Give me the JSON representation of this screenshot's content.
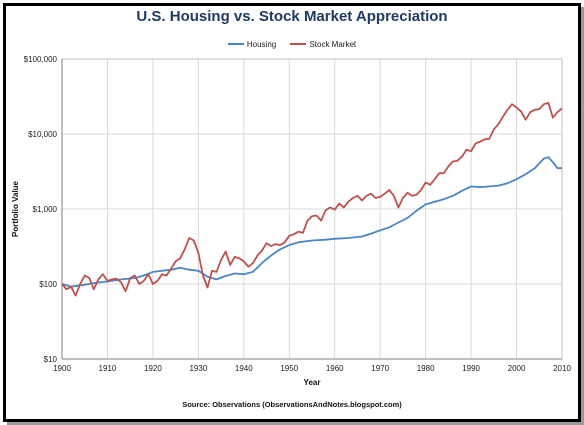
{
  "chart_data": {
    "type": "line",
    "title": "U.S. Housing vs. Stock Market Appreciation",
    "xlabel": "Year",
    "ylabel": "Portfolio Value",
    "y_scale": "log",
    "xlim": [
      1900,
      2010
    ],
    "ylim": [
      10,
      100000
    ],
    "x_ticks": [
      "1900",
      "1910",
      "1920",
      "1930",
      "1940",
      "1950",
      "1960",
      "1970",
      "1980",
      "1990",
      "2000",
      "2010"
    ],
    "y_ticks": [
      "$10",
      "$100",
      "$1,000",
      "$10,000",
      "$100,000"
    ],
    "grid": true,
    "legend": "top-center",
    "series": [
      {
        "name": "Housing",
        "color": "#4a86c5",
        "points": [
          [
            1900,
            100
          ],
          [
            1902,
            92
          ],
          [
            1905,
            98
          ],
          [
            1908,
            105
          ],
          [
            1910,
            108
          ],
          [
            1913,
            115
          ],
          [
            1916,
            120
          ],
          [
            1918,
            130
          ],
          [
            1920,
            145
          ],
          [
            1922,
            150
          ],
          [
            1924,
            155
          ],
          [
            1926,
            165
          ],
          [
            1928,
            155
          ],
          [
            1930,
            150
          ],
          [
            1932,
            125
          ],
          [
            1934,
            115
          ],
          [
            1936,
            128
          ],
          [
            1938,
            138
          ],
          [
            1940,
            135
          ],
          [
            1942,
            145
          ],
          [
            1944,
            190
          ],
          [
            1946,
            240
          ],
          [
            1948,
            290
          ],
          [
            1950,
            330
          ],
          [
            1952,
            360
          ],
          [
            1955,
            380
          ],
          [
            1958,
            390
          ],
          [
            1960,
            400
          ],
          [
            1963,
            410
          ],
          [
            1966,
            430
          ],
          [
            1968,
            470
          ],
          [
            1970,
            520
          ],
          [
            1972,
            570
          ],
          [
            1974,
            660
          ],
          [
            1976,
            760
          ],
          [
            1978,
            950
          ],
          [
            1980,
            1150
          ],
          [
            1982,
            1250
          ],
          [
            1984,
            1350
          ],
          [
            1986,
            1500
          ],
          [
            1988,
            1750
          ],
          [
            1990,
            2000
          ],
          [
            1992,
            1950
          ],
          [
            1994,
            2000
          ],
          [
            1996,
            2050
          ],
          [
            1998,
            2200
          ],
          [
            2000,
            2500
          ],
          [
            2002,
            2900
          ],
          [
            2004,
            3500
          ],
          [
            2006,
            4700
          ],
          [
            2007,
            4900
          ],
          [
            2008,
            4200
          ],
          [
            2009,
            3500
          ],
          [
            2010,
            3500
          ]
        ]
      },
      {
        "name": "Stock Market",
        "color": "#c0504d",
        "points": [
          [
            1900,
            100
          ],
          [
            1901,
            85
          ],
          [
            1902,
            92
          ],
          [
            1903,
            70
          ],
          [
            1904,
            100
          ],
          [
            1905,
            130
          ],
          [
            1906,
            120
          ],
          [
            1907,
            85
          ],
          [
            1908,
            115
          ],
          [
            1909,
            135
          ],
          [
            1910,
            110
          ],
          [
            1911,
            115
          ],
          [
            1912,
            118
          ],
          [
            1913,
            105
          ],
          [
            1914,
            80
          ],
          [
            1915,
            120
          ],
          [
            1916,
            130
          ],
          [
            1917,
            100
          ],
          [
            1918,
            110
          ],
          [
            1919,
            135
          ],
          [
            1920,
            100
          ],
          [
            1921,
            110
          ],
          [
            1922,
            135
          ],
          [
            1923,
            130
          ],
          [
            1924,
            160
          ],
          [
            1925,
            200
          ],
          [
            1926,
            220
          ],
          [
            1927,
            290
          ],
          [
            1928,
            410
          ],
          [
            1929,
            380
          ],
          [
            1930,
            260
          ],
          [
            1931,
            130
          ],
          [
            1932,
            90
          ],
          [
            1933,
            150
          ],
          [
            1934,
            145
          ],
          [
            1935,
            210
          ],
          [
            1936,
            270
          ],
          [
            1937,
            180
          ],
          [
            1938,
            230
          ],
          [
            1939,
            220
          ],
          [
            1940,
            200
          ],
          [
            1941,
            170
          ],
          [
            1942,
            190
          ],
          [
            1943,
            240
          ],
          [
            1944,
            280
          ],
          [
            1945,
            350
          ],
          [
            1946,
            320
          ],
          [
            1947,
            340
          ],
          [
            1948,
            330
          ],
          [
            1949,
            360
          ],
          [
            1950,
            440
          ],
          [
            1951,
            460
          ],
          [
            1952,
            500
          ],
          [
            1953,
            480
          ],
          [
            1954,
            700
          ],
          [
            1955,
            800
          ],
          [
            1956,
            820
          ],
          [
            1957,
            700
          ],
          [
            1958,
            960
          ],
          [
            1959,
            1050
          ],
          [
            1960,
            980
          ],
          [
            1961,
            1180
          ],
          [
            1962,
            1050
          ],
          [
            1963,
            1250
          ],
          [
            1964,
            1400
          ],
          [
            1965,
            1500
          ],
          [
            1966,
            1300
          ],
          [
            1967,
            1500
          ],
          [
            1968,
            1600
          ],
          [
            1969,
            1400
          ],
          [
            1970,
            1450
          ],
          [
            1971,
            1600
          ],
          [
            1972,
            1800
          ],
          [
            1973,
            1500
          ],
          [
            1974,
            1050
          ],
          [
            1975,
            1400
          ],
          [
            1976,
            1650
          ],
          [
            1977,
            1500
          ],
          [
            1978,
            1550
          ],
          [
            1979,
            1800
          ],
          [
            1980,
            2250
          ],
          [
            1981,
            2100
          ],
          [
            1982,
            2500
          ],
          [
            1983,
            3000
          ],
          [
            1984,
            3000
          ],
          [
            1985,
            3700
          ],
          [
            1986,
            4300
          ],
          [
            1987,
            4400
          ],
          [
            1988,
            5000
          ],
          [
            1989,
            6200
          ],
          [
            1990,
            5900
          ],
          [
            1991,
            7500
          ],
          [
            1992,
            7900
          ],
          [
            1993,
            8500
          ],
          [
            1994,
            8600
          ],
          [
            1995,
            11500
          ],
          [
            1996,
            13500
          ],
          [
            1997,
            17000
          ],
          [
            1998,
            21000
          ],
          [
            1999,
            25000
          ],
          [
            2000,
            22500
          ],
          [
            2001,
            20000
          ],
          [
            2002,
            15500
          ],
          [
            2003,
            19500
          ],
          [
            2004,
            21000
          ],
          [
            2005,
            21500
          ],
          [
            2006,
            25000
          ],
          [
            2007,
            26000
          ],
          [
            2008,
            16500
          ],
          [
            2009,
            19500
          ],
          [
            2010,
            22000
          ]
        ]
      }
    ]
  },
  "source_text": "Source: Observations (ObservationsAndNotes.blogspot.com)"
}
